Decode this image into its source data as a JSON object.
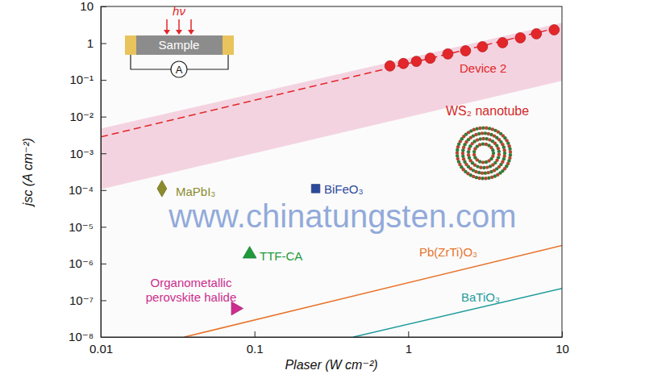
{
  "chart_data": {
    "type": "scatter",
    "xlabel": "Plaser (W cm⁻²)",
    "ylabel": "jsc (A cm⁻²)",
    "log": true,
    "grid": false,
    "xlim": [
      0.01,
      10
    ],
    "ylim": [
      1e-08,
      10
    ],
    "xticks": [
      0.01,
      0.1,
      1,
      10
    ],
    "yticks": [
      {
        "value": 1e-08,
        "label": "10⁻⁸"
      },
      {
        "value": 1e-07,
        "label": "10⁻⁷"
      },
      {
        "value": 1e-06,
        "label": "10⁻⁶"
      },
      {
        "value": 1e-05,
        "label": "10⁻⁵"
      },
      {
        "value": 0.0001,
        "label": "10⁻⁴"
      },
      {
        "value": 0.001,
        "label": "10⁻³"
      },
      {
        "value": 0.01,
        "label": "10⁻²"
      },
      {
        "value": 0.1,
        "label": "10⁻¹"
      },
      1,
      10
    ],
    "series": [
      {
        "name": "Device 2",
        "type": "scatter",
        "marker": "circle",
        "color": "#e3262a",
        "x": [
          0.76,
          0.93,
          1.13,
          1.39,
          1.81,
          2.36,
          3.04,
          4.11,
          5.36,
          6.82,
          8.9
        ],
        "values": [
          0.24,
          0.28,
          0.32,
          0.39,
          0.51,
          0.62,
          0.8,
          1.03,
          1.4,
          1.8,
          2.31
        ],
        "fit": {
          "line_style": "dashed",
          "x": [
            0.01,
            10
          ],
          "values": [
            0.0028,
            2.8
          ]
        },
        "band": {
          "color": "#f4d3e0",
          "x": [
            0.01,
            10
          ],
          "lower": [
            0.000105,
            0.095
          ],
          "upper": [
            0.0047,
            3.6
          ]
        }
      },
      {
        "name": "MaPbI₃",
        "type": "scatter",
        "marker": "diamond",
        "color": "#8b8b2e",
        "x": [
          0.025
        ],
        "values": [
          0.00011
        ]
      },
      {
        "name": "BiFeO₃",
        "type": "scatter",
        "marker": "square",
        "color": "#2c4a9c",
        "x": [
          0.25
        ],
        "values": [
          0.00011
        ]
      },
      {
        "name": "TTF-CA",
        "type": "scatter",
        "marker": "triangle",
        "color": "#1e9a3c",
        "x": [
          0.093
        ],
        "values": [
          1.8e-06
        ]
      },
      {
        "name": "Organometallic\nperovskite halide",
        "type": "scatter",
        "marker": "triangle-right",
        "color": "#cc2e8f",
        "x": [
          0.075
        ],
        "values": [
          6e-08
        ]
      },
      {
        "name": "Pb(ZrTi)O₃",
        "type": "line",
        "line_style": "solid",
        "color": "#e8732a",
        "x": [
          0.035,
          10
        ],
        "values": [
          1e-08,
          3.1e-06
        ]
      },
      {
        "name": "BaTiO₃",
        "type": "line",
        "line_style": "solid",
        "color": "#1f9c9c",
        "x": [
          0.44,
          10
        ],
        "values": [
          1e-08,
          2.1e-07
        ]
      }
    ],
    "annotations": [
      "hν",
      "Sample",
      "A",
      "WS₂ nanotube",
      "www.chinatungsten.com"
    ]
  }
}
